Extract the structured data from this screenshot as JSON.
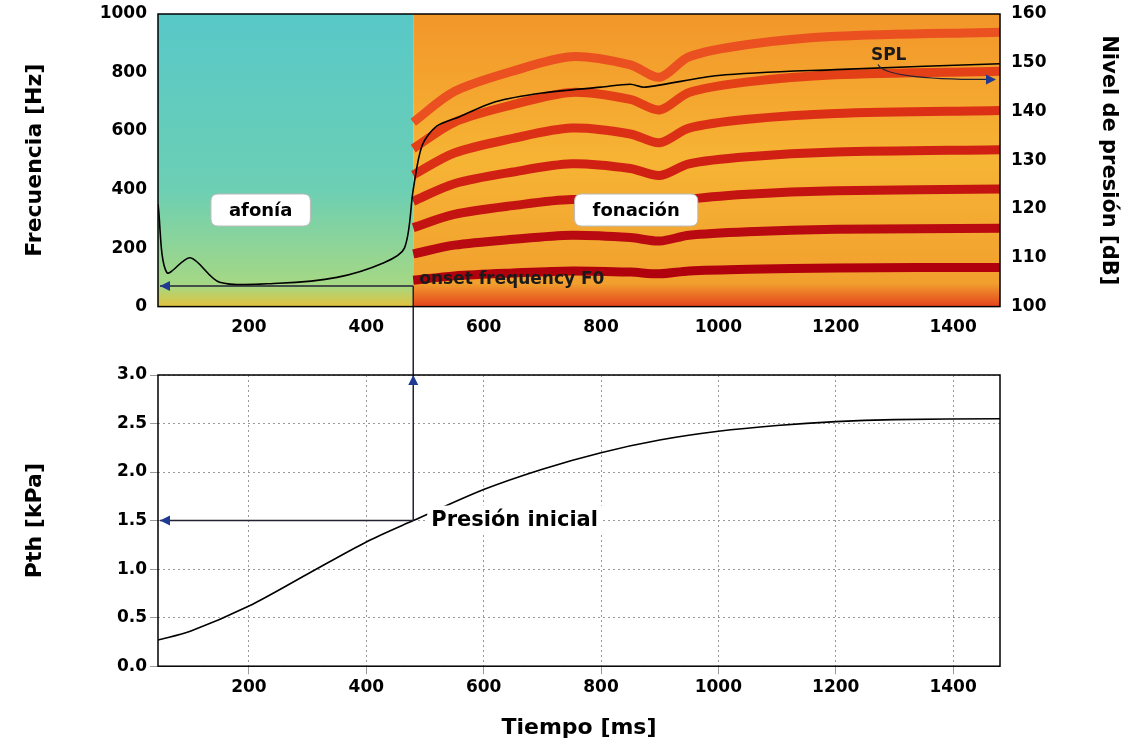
{
  "chart_data": [
    {
      "type": "line",
      "y_label": "Frecuencia [Hz]",
      "y2_label": "Nivel de presión [dB]",
      "xlim": [
        45,
        1480
      ],
      "xticks": [
        200,
        400,
        600,
        800,
        1000,
        1200,
        1400
      ],
      "ylim": [
        0,
        1000
      ],
      "yticks": [
        0,
        200,
        400,
        600,
        800,
        1000
      ],
      "y2lim": [
        100,
        160
      ],
      "y2ticks": [
        100,
        110,
        120,
        130,
        140,
        150,
        160
      ],
      "grid": false,
      "series": [
        {
          "axis": "y2",
          "color": "#000000",
          "x": [
            45,
            60,
            100,
            150,
            250,
            350,
            430,
            465,
            480,
            495,
            520,
            560,
            620,
            700,
            800,
            850,
            875,
            1000,
            1200,
            1480
          ],
          "values": [
            121,
            107,
            110,
            105,
            104.8,
            106,
            109,
            112,
            124,
            133,
            137,
            139,
            142,
            143.8,
            145,
            145.6,
            145,
            147.4,
            148.6,
            149.8
          ]
        },
        {
          "color": "#b0000e",
          "x": [
            480,
            550,
            650,
            750,
            850,
            900,
            950,
            1050,
            1200,
            1480
          ],
          "values": [
            90,
            105,
            115,
            122,
            118,
            112,
            122,
            128,
            132,
            134
          ]
        },
        {
          "color": "#b80a10",
          "x": [
            480,
            550,
            650,
            750,
            850,
            900,
            950,
            1050,
            1200,
            1480
          ],
          "values": [
            180,
            210,
            230,
            244,
            236,
            224,
            244,
            256,
            264,
            268
          ]
        },
        {
          "color": "#c41412",
          "x": [
            480,
            550,
            650,
            750,
            850,
            900,
            950,
            1050,
            1200,
            1480
          ],
          "values": [
            270,
            315,
            345,
            366,
            354,
            336,
            366,
            384,
            396,
            402
          ]
        },
        {
          "color": "#d02014",
          "x": [
            480,
            550,
            650,
            750,
            850,
            900,
            950,
            1050,
            1200,
            1480
          ],
          "values": [
            360,
            420,
            460,
            488,
            472,
            448,
            488,
            512,
            528,
            536
          ]
        },
        {
          "color": "#dc3016",
          "x": [
            480,
            550,
            650,
            750,
            850,
            900,
            950,
            1050,
            1200,
            1480
          ],
          "values": [
            450,
            525,
            575,
            610,
            590,
            560,
            610,
            640,
            660,
            670
          ]
        },
        {
          "color": "#e44018",
          "x": [
            480,
            550,
            650,
            750,
            850,
            900,
            950,
            1050,
            1200,
            1480
          ],
          "values": [
            540,
            630,
            690,
            732,
            708,
            672,
            732,
            768,
            792,
            804
          ]
        },
        {
          "color": "#ea5020",
          "x": [
            480,
            550,
            650,
            750,
            850,
            900,
            950,
            1050,
            1200,
            1480
          ],
          "values": [
            630,
            735,
            805,
            854,
            826,
            784,
            854,
            896,
            924,
            938
          ]
        }
      ],
      "labels": [
        {
          "text": "afonía",
          "x": 220,
          "y": 330
        },
        {
          "text": "fonación",
          "x": 860,
          "y": 330
        },
        {
          "text": "SPL",
          "x": 1260,
          "y": 151.5,
          "axis": "y2"
        }
      ],
      "onset": {
        "text": "onset frequency F0",
        "x": 480,
        "y": 70
      }
    },
    {
      "type": "line",
      "x_label": "Tiempo [ms]",
      "y_label": "Pth [kPa]",
      "xlim": [
        45,
        1480
      ],
      "xticks": [
        200,
        400,
        600,
        800,
        1000,
        1200,
        1400
      ],
      "ylim": [
        0,
        3
      ],
      "yticks": [
        {
          "value": 0,
          "label": "0.0"
        },
        0.5,
        {
          "value": 1,
          "label": "1.0"
        },
        1.5,
        {
          "value": 2,
          "label": "2.0"
        },
        2.5,
        {
          "value": 3,
          "label": "3.0"
        }
      ],
      "grid": true,
      "series": [
        {
          "color": "#000000",
          "x": [
            45,
            100,
            200,
            300,
            400,
            480,
            600,
            700,
            800,
            900,
            1000,
            1100,
            1200,
            1300,
            1480
          ],
          "values": [
            0.27,
            0.36,
            0.62,
            0.95,
            1.28,
            1.5,
            1.82,
            2.03,
            2.2,
            2.33,
            2.42,
            2.48,
            2.52,
            2.54,
            2.55
          ]
        }
      ],
      "onset": {
        "text": "Presión inicial",
        "x": 480,
        "y": 1.5
      }
    }
  ]
}
